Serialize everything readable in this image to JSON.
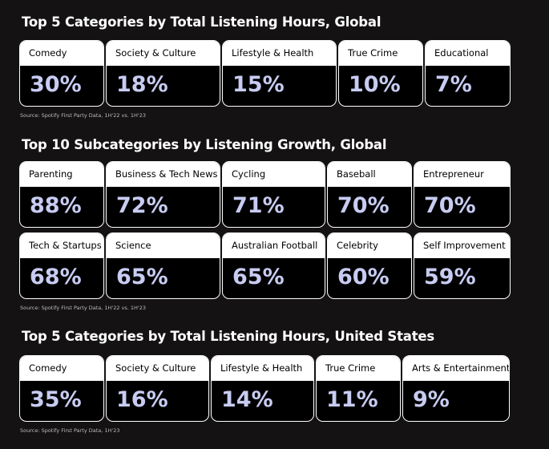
{
  "sections": [
    {
      "title": "Top 5 Categories by Total Listening Hours, Global",
      "rows": [
        [
          {
            "label": "Comedy",
            "value": "30%"
          },
          {
            "label": "Society & Culture",
            "value": "18%"
          },
          {
            "label": "Lifestyle & Health",
            "value": "15%"
          },
          {
            "label": "True Crime",
            "value": "10%"
          },
          {
            "label": "Educational",
            "value": "7%"
          }
        ]
      ],
      "source": "Source: Spotify First Party Data, 1H'22 vs. 1H'23"
    },
    {
      "title": "Top 10 Subcategories by Listening Growth, Global",
      "rows": [
        [
          {
            "label": "Parenting",
            "value": "88%"
          },
          {
            "label": "Business & Tech News",
            "value": "72%"
          },
          {
            "label": "Cycling",
            "value": "71%"
          },
          {
            "label": "Baseball",
            "value": "70%"
          },
          {
            "label": "Entrepreneur",
            "value": "70%"
          }
        ],
        [
          {
            "label": "Tech & Startups",
            "value": "68%"
          },
          {
            "label": "Science",
            "value": "65%"
          },
          {
            "label": "Australian Football",
            "value": "65%"
          },
          {
            "label": "Celebrity",
            "value": "60%"
          },
          {
            "label": "Self Improvement",
            "value": "59%"
          }
        ]
      ],
      "source": "Source: Spotify First Party Data, 1H'22 vs. 1H'23"
    },
    {
      "title": "Top 5 Categories by Total Listening Hours, United States",
      "rows": [
        [
          {
            "label": "Comedy",
            "value": "35%"
          },
          {
            "label": "Society & Culture",
            "value": "16%"
          },
          {
            "label": "Lifestyle & Health",
            "value": "14%"
          },
          {
            "label": "True Crime",
            "value": "11%"
          },
          {
            "label": "Arts & Entertainment",
            "value": "9%"
          }
        ]
      ],
      "source": "Source: Spotify First Party Data, 1H'23"
    }
  ]
}
